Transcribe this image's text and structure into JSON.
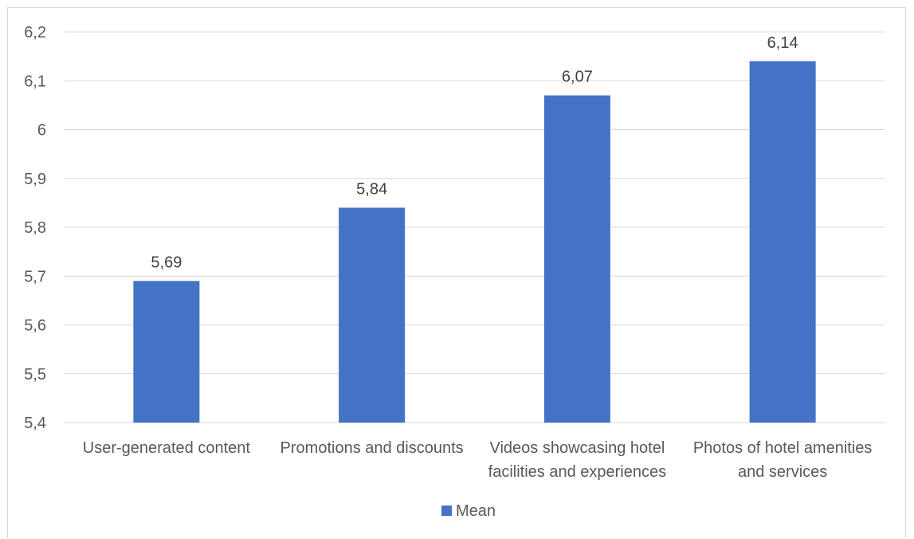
{
  "chart_data": {
    "type": "bar",
    "title": "",
    "xlabel": "",
    "ylabel": "",
    "categories": [
      [
        "User-generated content"
      ],
      [
        "Promotions and discounts"
      ],
      [
        "Videos showcasing hotel",
        "facilities and experiences"
      ],
      [
        "Photos of hotel amenities",
        "and services"
      ]
    ],
    "series": [
      {
        "name": "Mean",
        "color": "#4472C4",
        "values": [
          5.69,
          5.84,
          6.07,
          6.14
        ],
        "labels": [
          "5,69",
          "5,84",
          "6,07",
          "6,14"
        ]
      }
    ],
    "ylim": [
      5.4,
      6.2
    ],
    "yticks": [
      5.4,
      5.5,
      5.6,
      5.7,
      5.8,
      5.9,
      6.0,
      6.1,
      6.2
    ],
    "ytick_labels": [
      "5,4",
      "5,5",
      "5,6",
      "5,7",
      "5,8",
      "5,9",
      "6",
      "6,1",
      "6,2"
    ],
    "grid": true,
    "legend": "bottom-center"
  }
}
